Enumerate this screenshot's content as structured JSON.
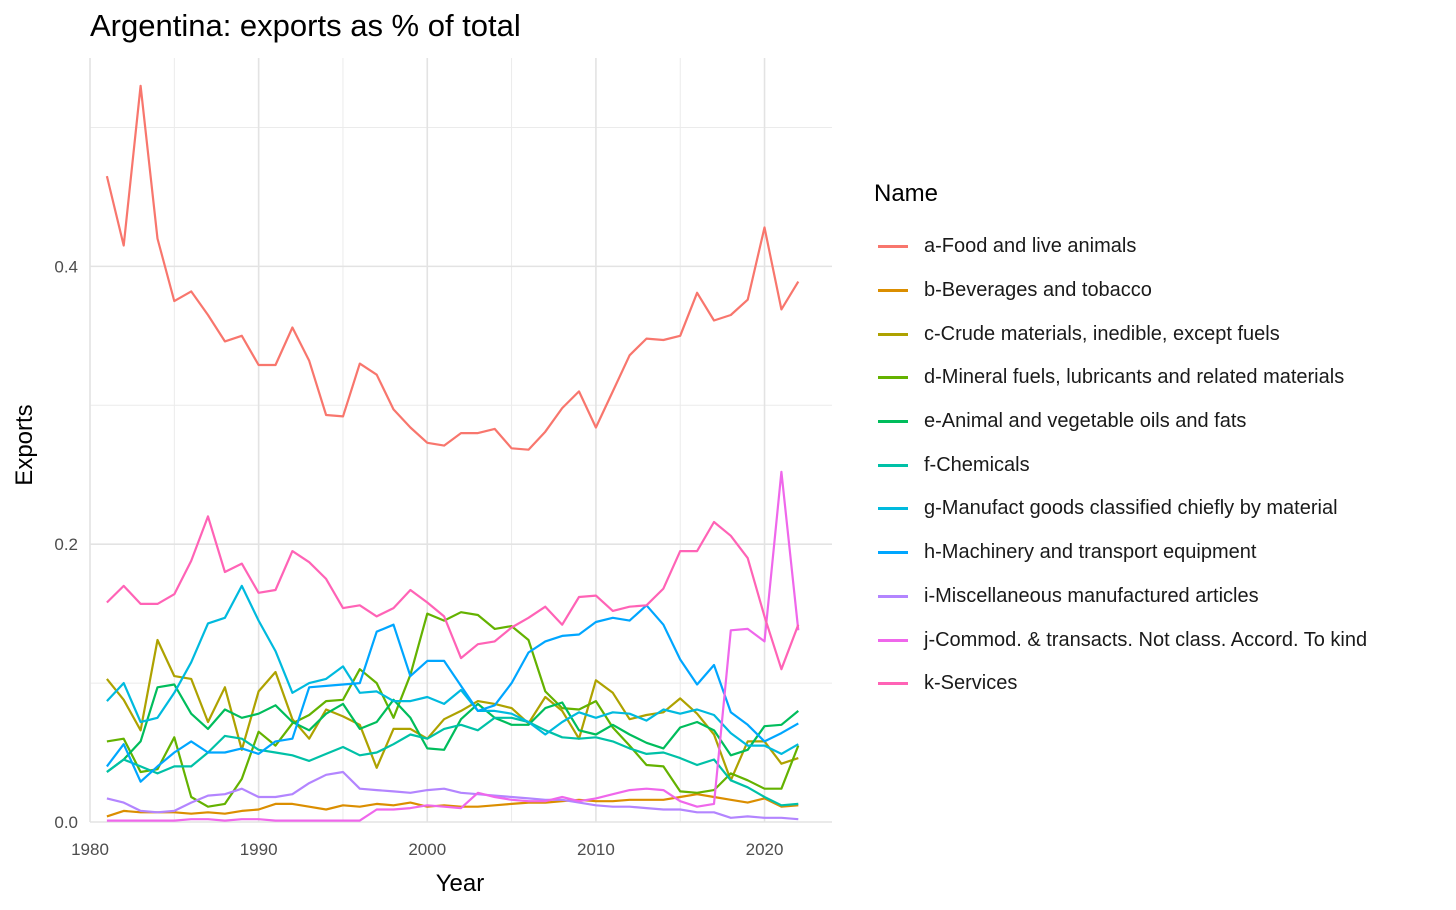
{
  "chart_data": {
    "type": "line",
    "title": "Argentina: exports as % of total",
    "xlabel": "Year",
    "ylabel": "Exports",
    "xlim": [
      1980,
      2024
    ],
    "ylim": [
      0,
      0.55
    ],
    "xticks": [
      1980,
      1990,
      2000,
      2010,
      2020
    ],
    "yticks": [
      0.0,
      0.2,
      0.4
    ],
    "ytick_labels": [
      "0.0",
      "0.2",
      "0.4"
    ],
    "grid": "on",
    "legend_title": "Name",
    "legend_position": "right",
    "x": [
      1981,
      1982,
      1983,
      1984,
      1985,
      1986,
      1987,
      1988,
      1989,
      1990,
      1991,
      1992,
      1993,
      1994,
      1995,
      1996,
      1997,
      1998,
      1999,
      2000,
      2001,
      2002,
      2003,
      2004,
      2005,
      2006,
      2007,
      2008,
      2009,
      2010,
      2011,
      2012,
      2013,
      2014,
      2015,
      2016,
      2017,
      2018,
      2019,
      2020,
      2021,
      2022
    ],
    "series": [
      {
        "name": "a-Food and live animals",
        "color": "#F8766D",
        "values": [
          0.465,
          0.415,
          0.53,
          0.42,
          0.375,
          0.382,
          0.365,
          0.346,
          0.35,
          0.329,
          0.329,
          0.356,
          0.332,
          0.293,
          0.292,
          0.33,
          0.322,
          0.297,
          0.284,
          0.273,
          0.271,
          0.28,
          0.28,
          0.283,
          0.269,
          0.268,
          0.281,
          0.298,
          0.31,
          0.284,
          0.31,
          0.336,
          0.348,
          0.347,
          0.35,
          0.381,
          0.361,
          0.365,
          0.376,
          0.428,
          0.369,
          0.389
        ]
      },
      {
        "name": "b-Beverages and tobacco",
        "color": "#DB8E00",
        "values": [
          0.004,
          0.008,
          0.007,
          0.007,
          0.007,
          0.006,
          0.007,
          0.006,
          0.008,
          0.009,
          0.013,
          0.013,
          0.011,
          0.009,
          0.012,
          0.011,
          0.013,
          0.012,
          0.014,
          0.011,
          0.012,
          0.011,
          0.011,
          0.012,
          0.013,
          0.014,
          0.014,
          0.015,
          0.016,
          0.015,
          0.015,
          0.016,
          0.016,
          0.016,
          0.018,
          0.02,
          0.018,
          0.016,
          0.014,
          0.017,
          0.011,
          0.012
        ]
      },
      {
        "name": "c-Crude materials, inedible, except fuels",
        "color": "#AEA200",
        "values": [
          0.103,
          0.088,
          0.066,
          0.131,
          0.105,
          0.103,
          0.072,
          0.097,
          0.052,
          0.094,
          0.108,
          0.074,
          0.06,
          0.081,
          0.076,
          0.07,
          0.039,
          0.067,
          0.067,
          0.06,
          0.074,
          0.08,
          0.087,
          0.085,
          0.082,
          0.071,
          0.09,
          0.08,
          0.06,
          0.102,
          0.093,
          0.074,
          0.077,
          0.079,
          0.089,
          0.078,
          0.063,
          0.03,
          0.058,
          0.058,
          0.042,
          0.046
        ]
      },
      {
        "name": "d-Mineral fuels, lubricants and related materials",
        "color": "#64B200",
        "values": [
          0.058,
          0.06,
          0.036,
          0.038,
          0.061,
          0.018,
          0.011,
          0.013,
          0.031,
          0.065,
          0.055,
          0.071,
          0.077,
          0.087,
          0.088,
          0.11,
          0.1,
          0.075,
          0.106,
          0.15,
          0.145,
          0.151,
          0.149,
          0.139,
          0.141,
          0.131,
          0.094,
          0.082,
          0.081,
          0.087,
          0.068,
          0.055,
          0.041,
          0.04,
          0.022,
          0.021,
          0.023,
          0.035,
          0.03,
          0.024,
          0.024,
          0.055
        ]
      },
      {
        "name": "e-Animal and vegetable oils and fats",
        "color": "#00BD5C",
        "values": [
          0.036,
          0.045,
          0.058,
          0.097,
          0.099,
          0.078,
          0.067,
          0.081,
          0.075,
          0.078,
          0.084,
          0.072,
          0.066,
          0.078,
          0.085,
          0.067,
          0.072,
          0.088,
          0.075,
          0.053,
          0.052,
          0.074,
          0.085,
          0.075,
          0.07,
          0.07,
          0.082,
          0.086,
          0.066,
          0.063,
          0.07,
          0.063,
          0.057,
          0.053,
          0.068,
          0.072,
          0.066,
          0.048,
          0.052,
          0.069,
          0.07,
          0.08
        ]
      },
      {
        "name": "f-Chemicals",
        "color": "#00C1A7",
        "values": [
          0.036,
          0.045,
          0.04,
          0.035,
          0.04,
          0.04,
          0.05,
          0.062,
          0.06,
          0.052,
          0.05,
          0.048,
          0.044,
          0.049,
          0.054,
          0.048,
          0.05,
          0.056,
          0.063,
          0.06,
          0.067,
          0.07,
          0.066,
          0.075,
          0.075,
          0.072,
          0.066,
          0.061,
          0.06,
          0.061,
          0.058,
          0.053,
          0.049,
          0.05,
          0.046,
          0.041,
          0.045,
          0.03,
          0.025,
          0.018,
          0.012,
          0.013
        ]
      },
      {
        "name": "g-Manufact goods classified chiefly by material",
        "color": "#00BADE",
        "values": [
          0.087,
          0.1,
          0.072,
          0.075,
          0.093,
          0.115,
          0.143,
          0.147,
          0.17,
          0.145,
          0.123,
          0.093,
          0.1,
          0.103,
          0.112,
          0.093,
          0.094,
          0.087,
          0.087,
          0.09,
          0.085,
          0.095,
          0.08,
          0.08,
          0.078,
          0.072,
          0.063,
          0.072,
          0.079,
          0.075,
          0.079,
          0.078,
          0.073,
          0.081,
          0.078,
          0.081,
          0.077,
          0.064,
          0.055,
          0.055,
          0.049,
          0.056
        ]
      },
      {
        "name": "h-Machinery and transport equipment",
        "color": "#00A6FF",
        "values": [
          0.04,
          0.056,
          0.029,
          0.04,
          0.05,
          0.058,
          0.05,
          0.05,
          0.053,
          0.049,
          0.058,
          0.06,
          0.097,
          0.098,
          0.099,
          0.1,
          0.137,
          0.142,
          0.105,
          0.116,
          0.116,
          0.098,
          0.08,
          0.084,
          0.1,
          0.122,
          0.13,
          0.134,
          0.135,
          0.144,
          0.147,
          0.145,
          0.156,
          0.142,
          0.117,
          0.099,
          0.113,
          0.079,
          0.07,
          0.058,
          0.064,
          0.071
        ]
      },
      {
        "name": "i-Miscellaneous manufactured articles",
        "color": "#B385FF",
        "values": [
          0.017,
          0.014,
          0.008,
          0.007,
          0.008,
          0.014,
          0.019,
          0.02,
          0.024,
          0.018,
          0.018,
          0.02,
          0.028,
          0.034,
          0.036,
          0.024,
          0.023,
          0.022,
          0.021,
          0.023,
          0.024,
          0.021,
          0.02,
          0.019,
          0.018,
          0.017,
          0.016,
          0.016,
          0.014,
          0.012,
          0.011,
          0.011,
          0.01,
          0.009,
          0.009,
          0.007,
          0.007,
          0.003,
          0.004,
          0.003,
          0.003,
          0.002
        ]
      },
      {
        "name": "j-Commod. & transacts. Not class. Accord. To kind",
        "color": "#EF67EB",
        "values": [
          0.001,
          0.001,
          0.001,
          0.001,
          0.001,
          0.002,
          0.002,
          0.001,
          0.002,
          0.002,
          0.001,
          0.001,
          0.001,
          0.001,
          0.001,
          0.001,
          0.009,
          0.009,
          0.01,
          0.012,
          0.011,
          0.01,
          0.021,
          0.018,
          0.016,
          0.015,
          0.015,
          0.018,
          0.015,
          0.017,
          0.02,
          0.023,
          0.024,
          0.023,
          0.015,
          0.011,
          0.013,
          0.138,
          0.139,
          0.13,
          0.252,
          0.138
        ]
      },
      {
        "name": "k-Services",
        "color": "#FF63B6",
        "values": [
          0.158,
          0.17,
          0.157,
          0.157,
          0.164,
          0.188,
          0.22,
          0.18,
          0.186,
          0.165,
          0.167,
          0.195,
          0.187,
          0.175,
          0.154,
          0.156,
          0.148,
          0.154,
          0.167,
          0.158,
          0.148,
          0.118,
          0.128,
          0.13,
          0.14,
          0.147,
          0.155,
          0.142,
          0.162,
          0.163,
          0.152,
          0.155,
          0.156,
          0.168,
          0.195,
          0.195,
          0.216,
          0.206,
          0.19,
          0.148,
          0.11,
          0.142
        ]
      }
    ]
  }
}
